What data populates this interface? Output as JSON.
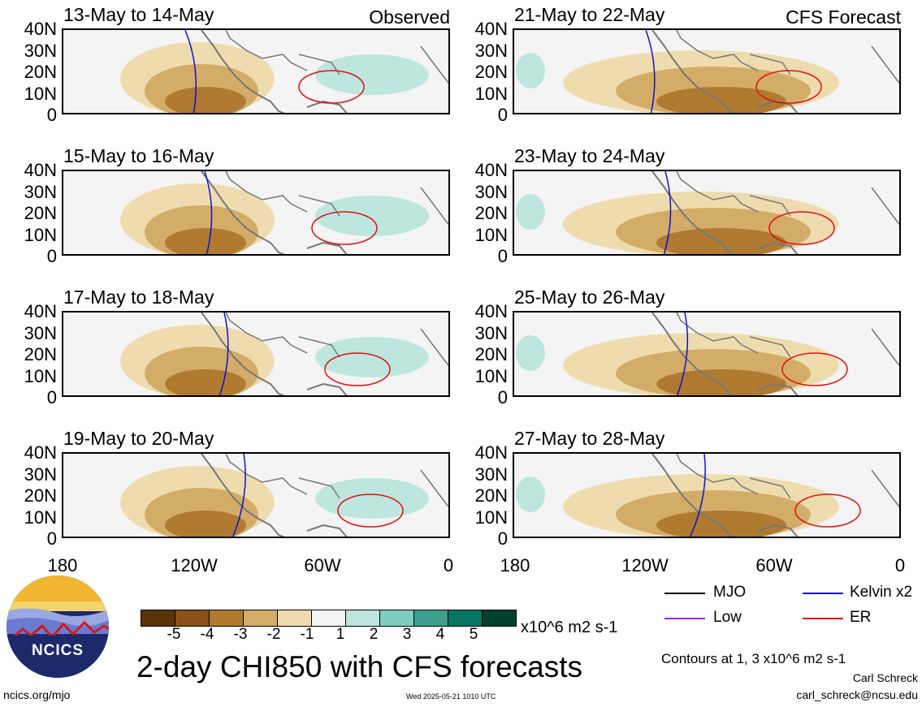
{
  "panels": [
    {
      "title": "13-May to 14-May",
      "tag": "Observed"
    },
    {
      "title": "21-May to 22-May",
      "tag": "CFS Forecast"
    },
    {
      "title": "15-May to 16-May",
      "tag": ""
    },
    {
      "title": "23-May to 24-May",
      "tag": ""
    },
    {
      "title": "17-May to 18-May",
      "tag": ""
    },
    {
      "title": "25-May to 26-May",
      "tag": ""
    },
    {
      "title": "19-May to 20-May",
      "tag": ""
    },
    {
      "title": "27-May to 28-May",
      "tag": ""
    }
  ],
  "y_ticks": [
    "40N",
    "30N",
    "20N",
    "10N",
    "0"
  ],
  "x_ticks": [
    "180",
    "120W",
    "60W",
    "0"
  ],
  "colorbar": {
    "labels": [
      "-5",
      "-4",
      "-3",
      "-2",
      "-1",
      "1",
      "2",
      "3",
      "4",
      "5"
    ],
    "colors": [
      "#5a3408",
      "#8a5218",
      "#b07a30",
      "#d3ac68",
      "#efdcae",
      "#f4f4f4",
      "#bde6df",
      "#7fcdbf",
      "#3e9e8d",
      "#087464",
      "#00402e"
    ],
    "units": "x10^6 m2 s-1"
  },
  "legend": [
    {
      "label": "MJO",
      "color": "#000000"
    },
    {
      "label": "Kelvin x2",
      "color": "#1010d0"
    },
    {
      "label": "Low",
      "color": "#a020f0"
    },
    {
      "label": "ER",
      "color": "#e01010"
    }
  ],
  "contours_note": "Contours at 1, 3 x10^6 m2 s-1",
  "main_title": "2-day CHI850 with CFS forecasts",
  "author": "Carl Schreck",
  "email": "carl_schreck@ncsu.edu",
  "site": "ncics.org/mjo",
  "timestamp": "Wed 2025-05-21 1010 UTC",
  "logo_text": "NCICS"
}
